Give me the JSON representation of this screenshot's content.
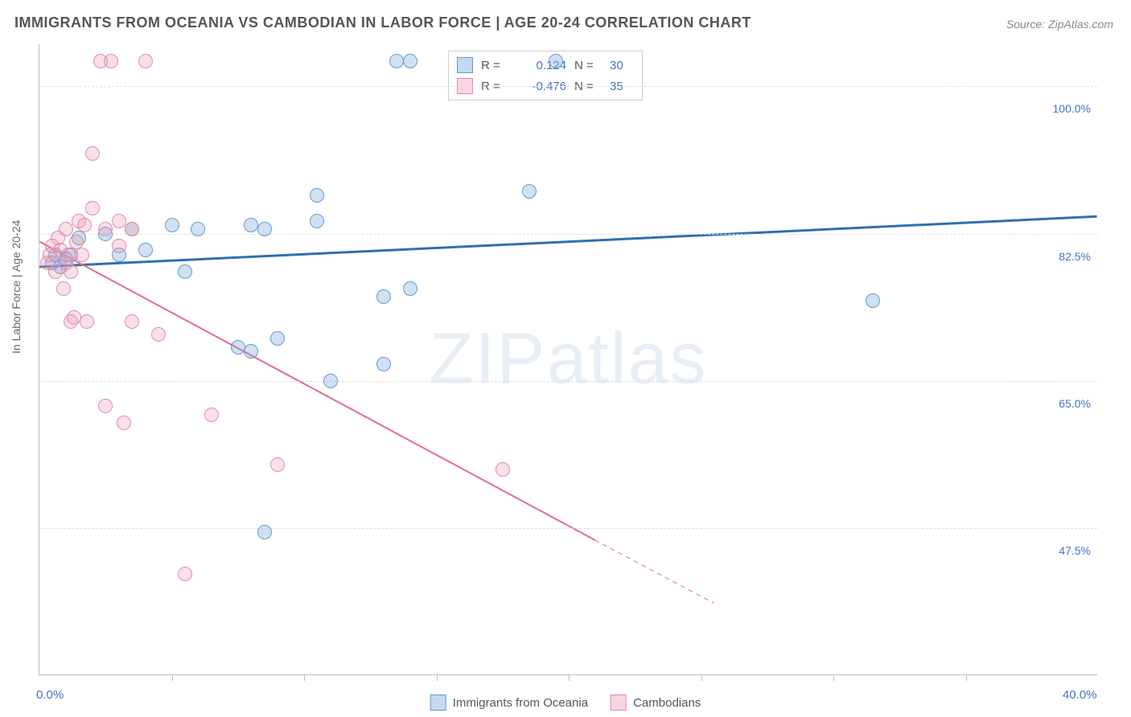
{
  "title": "IMMIGRANTS FROM OCEANIA VS CAMBODIAN IN LABOR FORCE | AGE 20-24 CORRELATION CHART",
  "source": "Source: ZipAtlas.com",
  "watermark_left": "ZIP",
  "watermark_right": "atlas",
  "chart": {
    "type": "scatter",
    "y_axis_title": "In Labor Force | Age 20-24",
    "x_range": [
      0,
      40
    ],
    "y_range": [
      30,
      105
    ],
    "x_ticks": [
      5,
      10,
      15,
      20,
      25,
      30,
      35
    ],
    "x_labels": [
      {
        "val": 0.0,
        "text": "0.0%"
      },
      {
        "val": 40.0,
        "text": "40.0%"
      }
    ],
    "y_gridlines": [
      47.5,
      65.0,
      82.5,
      100.0
    ],
    "y_labels": [
      {
        "val": 47.5,
        "text": "47.5%"
      },
      {
        "val": 65.0,
        "text": "65.0%"
      },
      {
        "val": 82.5,
        "text": "82.5%"
      },
      {
        "val": 100.0,
        "text": "100.0%"
      }
    ],
    "background_color": "#ffffff",
    "grid_color": "#dddddd",
    "border_color": "#bbbbbb",
    "series": [
      {
        "name": "Immigrants from Oceania",
        "color_fill": "rgba(120,170,220,0.35)",
        "color_stroke": "#6699cc",
        "marker_radius": 9,
        "R": "0.124",
        "N": "30",
        "regression": {
          "x1": 0,
          "y1": 78.5,
          "x2": 40,
          "y2": 84.5,
          "color": "#2f6fb3",
          "width": 3
        },
        "points": [
          [
            0.5,
            79
          ],
          [
            0.6,
            80
          ],
          [
            0.8,
            78.5
          ],
          [
            1.0,
            79.5
          ],
          [
            1.2,
            80
          ],
          [
            1.5,
            82
          ],
          [
            2.5,
            82.5
          ],
          [
            3.0,
            80
          ],
          [
            3.5,
            83
          ],
          [
            4.0,
            80.5
          ],
          [
            5.0,
            83.5
          ],
          [
            5.5,
            78
          ],
          [
            6.0,
            83
          ],
          [
            7.5,
            69
          ],
          [
            8.0,
            83.5
          ],
          [
            8.5,
            83
          ],
          [
            8.0,
            68.5
          ],
          [
            9.0,
            70
          ],
          [
            10.5,
            84
          ],
          [
            10.5,
            87
          ],
          [
            11.0,
            65
          ],
          [
            13.5,
            103
          ],
          [
            14.0,
            103
          ],
          [
            14.0,
            76
          ],
          [
            13.0,
            67
          ],
          [
            13.0,
            75
          ],
          [
            8.5,
            47
          ],
          [
            18.5,
            87.5
          ],
          [
            19.5,
            103
          ],
          [
            31.5,
            74.5
          ]
        ]
      },
      {
        "name": "Cambodians",
        "color_fill": "rgba(240,150,180,0.3)",
        "color_stroke": "#e08bab",
        "marker_radius": 9,
        "R": "-0.476",
        "N": "35",
        "regression_solid": {
          "x1": 0,
          "y1": 81.5,
          "x2": 21,
          "y2": 46,
          "color": "#e46a94",
          "width": 2
        },
        "regression_dashed": {
          "x1": 21,
          "y1": 46,
          "x2": 25.5,
          "y2": 38.5,
          "color": "#e46a94",
          "width": 1
        },
        "points": [
          [
            0.3,
            79
          ],
          [
            0.4,
            80
          ],
          [
            0.5,
            81
          ],
          [
            0.6,
            78
          ],
          [
            0.7,
            82
          ],
          [
            0.8,
            80.5
          ],
          [
            0.9,
            76
          ],
          [
            1.0,
            79
          ],
          [
            1.0,
            83
          ],
          [
            1.1,
            80
          ],
          [
            1.2,
            72
          ],
          [
            1.2,
            78
          ],
          [
            1.3,
            72.5
          ],
          [
            1.4,
            81.5
          ],
          [
            1.5,
            84
          ],
          [
            1.6,
            80
          ],
          [
            1.7,
            83.5
          ],
          [
            1.8,
            72
          ],
          [
            2.0,
            92
          ],
          [
            2.3,
            103
          ],
          [
            2.0,
            85.5
          ],
          [
            2.5,
            83
          ],
          [
            2.5,
            62
          ],
          [
            2.7,
            103
          ],
          [
            3.0,
            81
          ],
          [
            3.0,
            84
          ],
          [
            3.2,
            60
          ],
          [
            3.5,
            72
          ],
          [
            3.5,
            83
          ],
          [
            4.0,
            103
          ],
          [
            4.5,
            70.5
          ],
          [
            5.5,
            42
          ],
          [
            6.5,
            61
          ],
          [
            9.0,
            55
          ],
          [
            17.5,
            54.5
          ]
        ]
      }
    ],
    "legend_bottom": [
      {
        "label": "Immigrants from Oceania",
        "class": "blue"
      },
      {
        "label": "Cambodians",
        "class": "pink"
      }
    ],
    "legend_top": [
      {
        "class": "blue",
        "r_label": "R =",
        "r_val": "0.124",
        "n_label": "N =",
        "n_val": "30"
      },
      {
        "class": "pink",
        "r_label": "R =",
        "r_val": "-0.476",
        "n_label": "N =",
        "n_val": "35"
      }
    ]
  }
}
